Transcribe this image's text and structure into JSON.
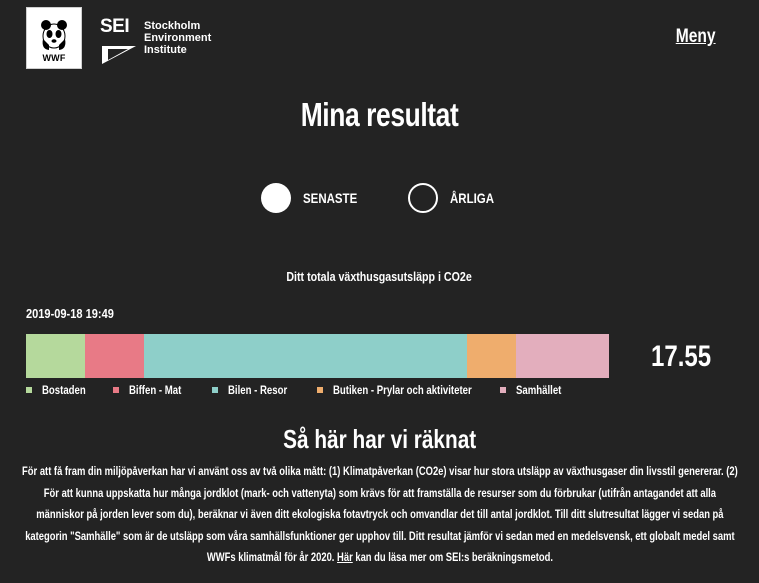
{
  "header": {
    "wwf_label": "WWF",
    "sei_mark": "SEI",
    "sei_lines": [
      "Stockholm",
      "Environment",
      "Institute"
    ],
    "menu_label": "Meny"
  },
  "page_title": "Mina resultat",
  "toggles": [
    {
      "label": "SENASTE",
      "selected": true
    },
    {
      "label": "ÅRLIGA",
      "selected": false
    }
  ],
  "subtitle": "Ditt totala växthusgasutsläpp i CO2e",
  "timestamp": "2019-09-18 19:49",
  "total": "17.55",
  "chart_data": {
    "type": "bar",
    "orientation": "horizontal-stacked",
    "total": 17.55,
    "categories": [
      "Bostaden",
      "Biffen - Mat",
      "Bilen - Resor",
      "Butiken - Prylar och aktiviteter",
      "Samhället"
    ],
    "values": [
      1.78,
      1.77,
      9.73,
      1.46,
      2.81
    ],
    "colors": [
      "#b5d99c",
      "#e87a86",
      "#8ecfc9",
      "#efad6d",
      "#e3aebd"
    ]
  },
  "legend": [
    {
      "label": "Bostaden",
      "color": "#b5d99c"
    },
    {
      "label": "Biffen - Mat",
      "color": "#e87a86"
    },
    {
      "label": "Bilen - Resor",
      "color": "#8ecfc9"
    },
    {
      "label": "Butiken - Prylar och aktiviteter",
      "color": "#efad6d"
    },
    {
      "label": "Samhället",
      "color": "#e3aebd"
    }
  ],
  "method": {
    "title": "Så här har vi räknat",
    "text_before_link": "För att få fram din miljöpåverkan har vi använt oss av två olika mått: (1) Klimatpåverkan (CO2e) visar hur stora utsläpp av växthusgaser din livsstil genererar. (2) För att kunna uppskatta hur många jordklot (mark- och vattenyta) som krävs för att framställa de resurser som du förbrukar (utifrån antagandet att alla människor på jorden lever som du), beräknar vi även ditt ekologiska fotavtryck och omvandlar det till antal jordklot. Till ditt slutresultat lägger vi sedan på kategorin \"Samhälle\" som är de utsläpp som våra samhällsfunktioner ger upphov till. Ditt resultat jämför vi sedan med en medelsvensk, ett globalt medel samt WWFs klimatmål för år 2020. ",
    "link_text": "Här",
    "text_after_link": " kan du läsa mer om SEI:s beräkningsmetod."
  }
}
